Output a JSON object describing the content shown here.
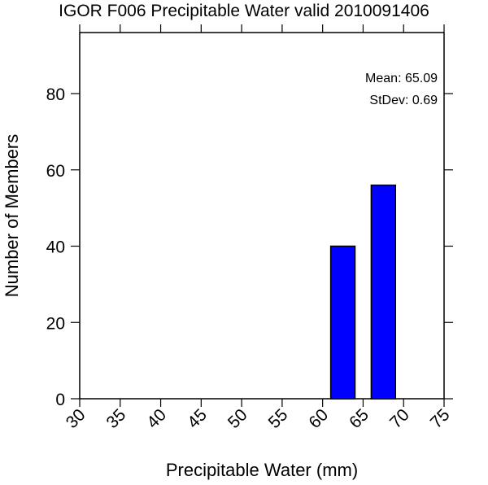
{
  "chart_data": {
    "type": "bar",
    "title": "IGOR F006 Precipitable Water valid 2010091406",
    "xlabel": "Precipitable Water (mm)",
    "ylabel": "Number of Members",
    "x_ticks": [
      "30",
      "35",
      "40",
      "45",
      "50",
      "55",
      "60",
      "65",
      "70",
      "75"
    ],
    "y_ticks": [
      "0",
      "20",
      "40",
      "60",
      "80"
    ],
    "xlim": [
      30,
      75
    ],
    "ylim": [
      0,
      96
    ],
    "grid": false,
    "bars": [
      {
        "x_start": 61,
        "x_end": 64,
        "value": 40
      },
      {
        "x_start": 66,
        "x_end": 69,
        "value": 56
      }
    ],
    "bar_color": "#0000ff",
    "annotations": {
      "mean": "Mean: 65.09",
      "stdev": "StDev: 0.69"
    }
  }
}
